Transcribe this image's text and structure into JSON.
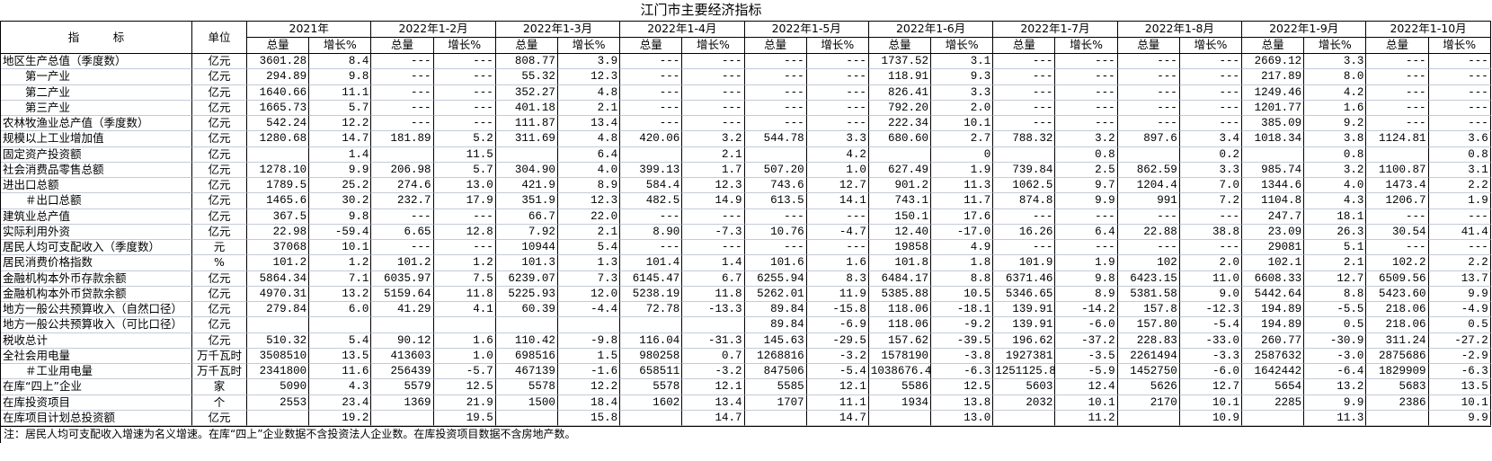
{
  "title": "江门市主要经济指标",
  "header": {
    "indicator": "指　　　标",
    "unit": "单位",
    "sub_total": "总量",
    "sub_growth": "增长%",
    "periods": [
      "2021年",
      "2022年1-2月",
      "2022年1-3月",
      "2022年1-4月",
      "2022年1-5月",
      "2022年1-6月",
      "2022年1-7月",
      "2022年1-8月",
      "2022年1-9月",
      "2022年1-10月"
    ]
  },
  "rows": [
    {
      "name": "地区生产总值（季度数）",
      "unit": "亿元",
      "values": [
        "3601.28",
        "8.4",
        "---",
        "---",
        "808.77",
        "3.9",
        "---",
        "---",
        "---",
        "---",
        "1737.52",
        "3.1",
        "---",
        "---",
        "---",
        "---",
        "2669.12",
        "3.3",
        "---",
        "---"
      ]
    },
    {
      "name": "　　第一产业",
      "unit": "亿元",
      "values": [
        "294.89",
        "9.8",
        "---",
        "---",
        "55.32",
        "12.3",
        "---",
        "---",
        "---",
        "---",
        "118.91",
        "9.3",
        "---",
        "---",
        "---",
        "---",
        "217.89",
        "8.0",
        "---",
        "---"
      ]
    },
    {
      "name": "　　第二产业",
      "unit": "亿元",
      "values": [
        "1640.66",
        "11.1",
        "---",
        "---",
        "352.27",
        "4.8",
        "---",
        "---",
        "---",
        "---",
        "826.41",
        "3.3",
        "---",
        "---",
        "---",
        "---",
        "1249.46",
        "4.2",
        "---",
        "---"
      ]
    },
    {
      "name": "　　第三产业",
      "unit": "亿元",
      "values": [
        "1665.73",
        "5.7",
        "---",
        "---",
        "401.18",
        "2.1",
        "---",
        "---",
        "---",
        "---",
        "792.20",
        "2.0",
        "---",
        "---",
        "---",
        "---",
        "1201.77",
        "1.6",
        "---",
        "---"
      ]
    },
    {
      "name": "农林牧渔业总产值（季度数）",
      "unit": "亿元",
      "values": [
        "542.24",
        "12.2",
        "---",
        "---",
        "111.87",
        "13.4",
        "---",
        "---",
        "---",
        "---",
        "222.34",
        "10.1",
        "---",
        "---",
        "---",
        "---",
        "385.09",
        "9.2",
        "---",
        "---"
      ]
    },
    {
      "name": "规模以上工业增加值",
      "unit": "亿元",
      "values": [
        "1280.68",
        "14.7",
        "181.89",
        "5.2",
        "311.69",
        "4.8",
        "420.06",
        "3.2",
        "544.78",
        "3.3",
        "680.60",
        "2.7",
        "788.32",
        "3.2",
        "897.6",
        "3.4",
        "1018.34",
        "3.8",
        "1124.81",
        "3.6"
      ]
    },
    {
      "name": "固定资产投资额",
      "unit": "亿元",
      "values": [
        "",
        "1.4",
        "",
        "11.5",
        "",
        "6.4",
        "",
        "2.1",
        "",
        "4.2",
        "",
        "0",
        "",
        "0.8",
        "",
        "0.2",
        "",
        "0.8",
        "",
        "0.8"
      ]
    },
    {
      "name": "社会消费品零售总额",
      "unit": "亿元",
      "values": [
        "1278.10",
        "9.9",
        "206.98",
        "5.7",
        "304.90",
        "4.0",
        "399.13",
        "1.7",
        "507.20",
        "1.0",
        "627.49",
        "1.9",
        "739.84",
        "2.5",
        "862.59",
        "3.3",
        "985.74",
        "3.2",
        "1100.87",
        "3.1"
      ]
    },
    {
      "name": "进出口总额",
      "unit": "亿元",
      "values": [
        "1789.5",
        "25.2",
        "274.6",
        "13.0",
        "421.9",
        "8.9",
        "584.4",
        "12.3",
        "743.6",
        "12.7",
        "901.2",
        "11.3",
        "1062.5",
        "9.7",
        "1204.4",
        "7.0",
        "1344.6",
        "4.0",
        "1473.4",
        "2.2"
      ]
    },
    {
      "name": "　　＃出口总额",
      "unit": "亿元",
      "values": [
        "1465.6",
        "30.2",
        "232.7",
        "17.9",
        "351.9",
        "12.3",
        "482.5",
        "14.9",
        "613.5",
        "14.1",
        "743.1",
        "11.7",
        "874.8",
        "9.9",
        "991",
        "7.2",
        "1104.8",
        "4.3",
        "1206.7",
        "1.9"
      ]
    },
    {
      "name": "建筑业总产值",
      "unit": "亿元",
      "values": [
        "367.5",
        "9.8",
        "---",
        "---",
        "66.7",
        "22.0",
        "---",
        "---",
        "---",
        "---",
        "150.1",
        "17.6",
        "---",
        "---",
        "---",
        "---",
        "247.7",
        "18.1",
        "---",
        "---"
      ]
    },
    {
      "name": "实际利用外资",
      "unit": "亿元",
      "values": [
        "22.98",
        "-59.4",
        "6.65",
        "12.8",
        "7.92",
        "2.1",
        "8.90",
        "-7.3",
        "10.76",
        "-4.7",
        "12.40",
        "-17.0",
        "16.26",
        "6.4",
        "22.88",
        "38.8",
        "23.09",
        "26.3",
        "30.54",
        "41.4"
      ]
    },
    {
      "name": "居民人均可支配收入（季度数）",
      "unit": "元",
      "values": [
        "37068",
        "10.1",
        "---",
        "---",
        "10944",
        "5.4",
        "---",
        "---",
        "---",
        "---",
        "19858",
        "4.9",
        "---",
        "---",
        "---",
        "---",
        "29081",
        "5.1",
        "---",
        "---"
      ]
    },
    {
      "name": "居民消费价格指数",
      "unit": "%",
      "values": [
        "101.2",
        "1.2",
        "101.2",
        "1.2",
        "101.3",
        "1.3",
        "101.4",
        "1.4",
        "101.6",
        "1.6",
        "101.8",
        "1.8",
        "101.9",
        "1.9",
        "102",
        "2.0",
        "102.1",
        "2.1",
        "102.2",
        "2.2"
      ]
    },
    {
      "name": "金融机构本外币存款余额",
      "unit": "亿元",
      "values": [
        "5864.34",
        "7.1",
        "6035.97",
        "7.5",
        "6239.07",
        "7.3",
        "6145.47",
        "6.7",
        "6255.94",
        "8.3",
        "6484.17",
        "8.8",
        "6371.46",
        "9.8",
        "6423.15",
        "11.0",
        "6608.33",
        "12.7",
        "6509.56",
        "13.7"
      ]
    },
    {
      "name": "金融机构本外币贷款余额",
      "unit": "亿元",
      "values": [
        "4970.31",
        "13.2",
        "5159.64",
        "11.8",
        "5225.93",
        "12.0",
        "5238.19",
        "11.8",
        "5262.01",
        "11.9",
        "5385.88",
        "10.5",
        "5346.65",
        "8.9",
        "5381.58",
        "9.0",
        "5442.64",
        "8.8",
        "5423.60",
        "9.9"
      ]
    },
    {
      "name": "地方一般公共预算收入（自然口径）",
      "unit": "亿元",
      "values": [
        "279.84",
        "6.0",
        "41.29",
        "4.1",
        "60.39",
        "-4.4",
        "72.78",
        "-13.3",
        "89.84",
        "-15.8",
        "118.06",
        "-18.1",
        "139.91",
        "-14.2",
        "157.8",
        "-12.3",
        "194.89",
        "-5.5",
        "218.06",
        "-4.9"
      ]
    },
    {
      "name": "地方一般公共预算收入（可比口径）",
      "unit": "亿元",
      "values": [
        "",
        "",
        "",
        "",
        "",
        "",
        "",
        "",
        "89.84",
        "-6.9",
        "118.06",
        "-9.2",
        "139.91",
        "-6.0",
        "157.80",
        "-5.4",
        "194.89",
        "0.5",
        "218.06",
        "0.5"
      ]
    },
    {
      "name": "税收总计",
      "unit": "亿元",
      "values": [
        "510.32",
        "5.4",
        "90.12",
        "1.6",
        "110.42",
        "-9.8",
        "116.04",
        "-31.3",
        "145.63",
        "-29.5",
        "157.62",
        "-39.5",
        "196.62",
        "-37.2",
        "228.83",
        "-33.0",
        "260.77",
        "-30.9",
        "311.24",
        "-27.2"
      ]
    },
    {
      "name": "全社会用电量",
      "unit": "万千瓦时",
      "values": [
        "3508510",
        "13.5",
        "413603",
        "1.0",
        "698516",
        "1.5",
        "980258",
        "0.7",
        "1268816",
        "-3.2",
        "1578190",
        "-3.8",
        "1927381",
        "-3.5",
        "2261494",
        "-3.3",
        "2587632",
        "-3.0",
        "2875686",
        "-2.9"
      ]
    },
    {
      "name": "　　＃工业用电量",
      "unit": "万千瓦时",
      "values": [
        "2341800",
        "11.6",
        "256439",
        "-5.7",
        "467139",
        "-1.6",
        "658511",
        "-3.2",
        "847506",
        "-5.4",
        "1038676.4",
        "-6.3",
        "1251125.8",
        "-5.9",
        "1452750",
        "-6.0",
        "1642442",
        "-6.4",
        "1829909",
        "-6.3"
      ]
    },
    {
      "name": "在库“四上”企业",
      "unit": "家",
      "values": [
        "5090",
        "4.3",
        "5579",
        "12.5",
        "5578",
        "12.2",
        "5578",
        "12.1",
        "5585",
        "12.1",
        "5586",
        "12.5",
        "5603",
        "12.4",
        "5626",
        "12.7",
        "5654",
        "13.2",
        "5683",
        "13.5"
      ]
    },
    {
      "name": "在库投资项目",
      "unit": "个",
      "values": [
        "2553",
        "23.4",
        "1369",
        "21.9",
        "1500",
        "18.4",
        "1602",
        "13.4",
        "1707",
        "11.1",
        "1934",
        "13.8",
        "2032",
        "10.1",
        "2170",
        "10.1",
        "2285",
        "9.9",
        "2386",
        "10.1"
      ]
    },
    {
      "name": "在库项目计划总投资额",
      "unit": "亿元",
      "values": [
        "",
        "19.2",
        "",
        "19.5",
        "",
        "15.8",
        "",
        "14.7",
        "",
        "14.7",
        "",
        "13.0",
        "",
        "11.2",
        "",
        "10.9",
        "",
        "11.3",
        "",
        "9.9"
      ]
    }
  ],
  "note": "注：居民人均可支配收入增速为名义增速。在库“四上”企业数据不含投资法人企业数。在库投资项目数据不含房地产数。"
}
